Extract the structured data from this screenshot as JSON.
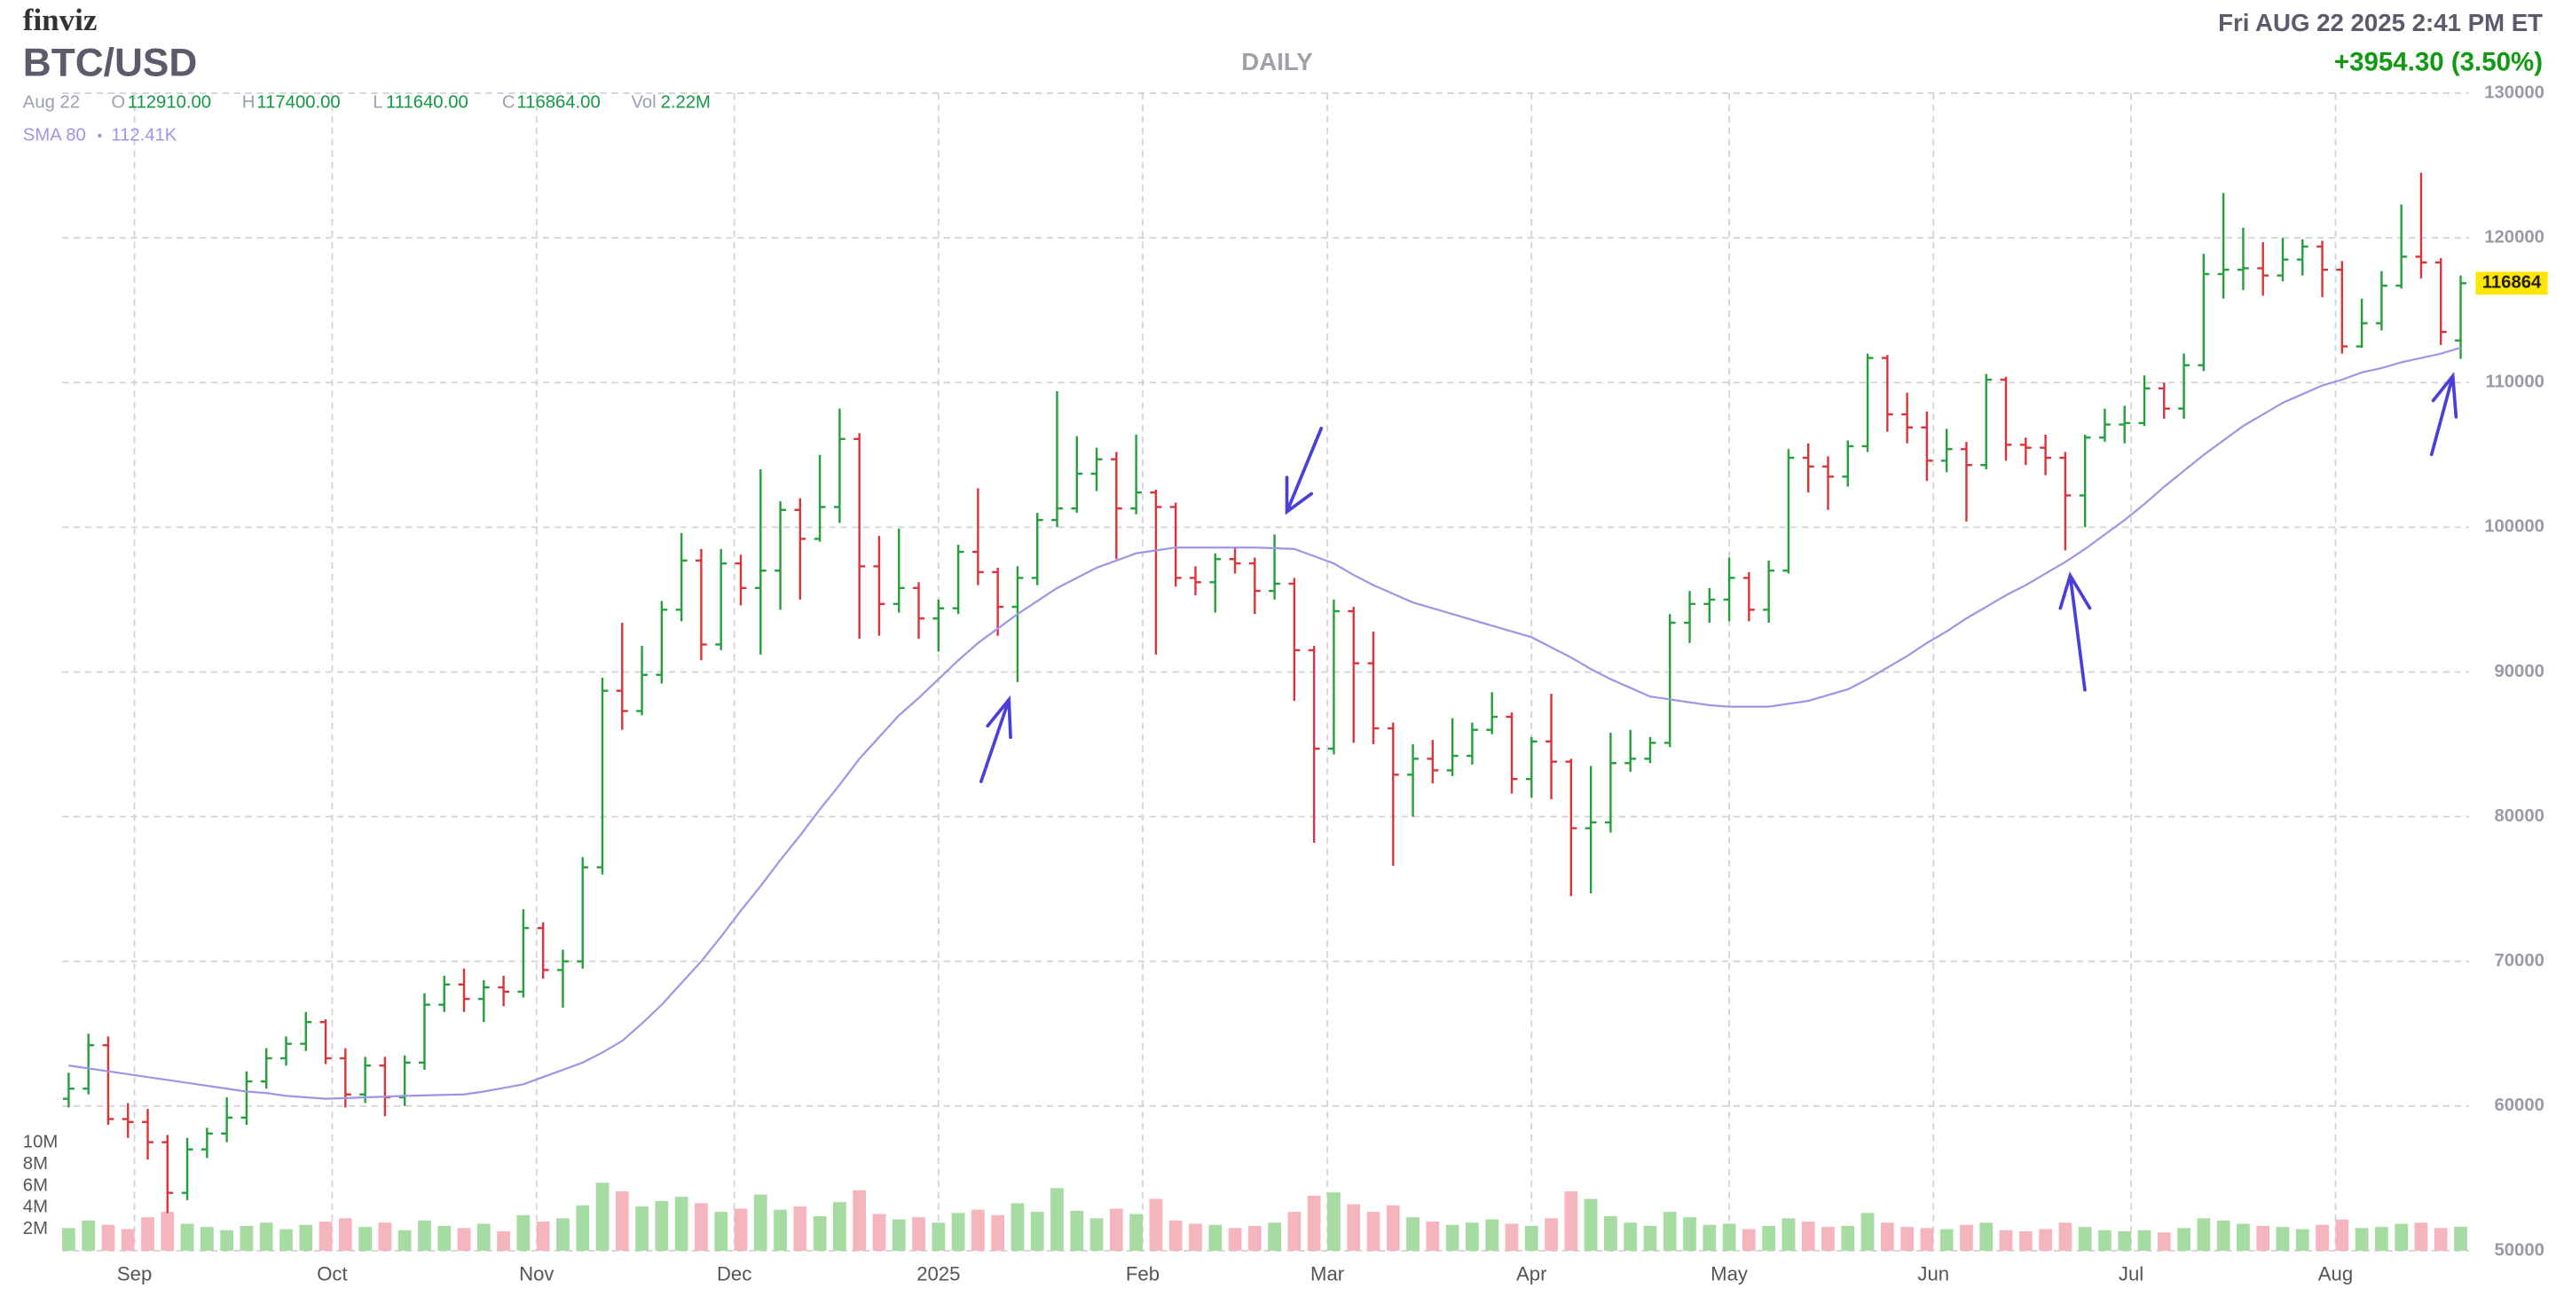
{
  "header": {
    "brand": "finviz",
    "datetime": "Fri AUG 22 2025 2:41 PM ET",
    "change": "+3954.30 (3.50%)"
  },
  "quote": {
    "date": "Aug 22",
    "open_label": "O",
    "open": "112910.00",
    "high_label": "H",
    "high": "117400.00",
    "low_label": "L",
    "low": "111640.00",
    "close_label": "C",
    "close": "116864.00",
    "vol_label": "Vol",
    "vol": "2.22M"
  },
  "chart_data": {
    "type": "ohlc",
    "title": "BTC/USD",
    "timeframe": "DAILY",
    "xlim": [
      -0.33,
      121.43
    ],
    "xticks": [
      {
        "value": 3.33,
        "label": "Sep"
      },
      {
        "value": 13.33,
        "label": "Oct"
      },
      {
        "value": 23.67,
        "label": "Nov"
      },
      {
        "value": 33.67,
        "label": "Dec"
      },
      {
        "value": 44,
        "label": "2025"
      },
      {
        "value": 54.33,
        "label": "Feb"
      },
      {
        "value": 63.67,
        "label": "Mar"
      },
      {
        "value": 74,
        "label": "Apr"
      },
      {
        "value": 84,
        "label": "May"
      },
      {
        "value": 94.33,
        "label": "Jun"
      },
      {
        "value": 104.33,
        "label": "Jul"
      },
      {
        "value": 114.67,
        "label": "Aug"
      }
    ],
    "ylim": [
      50000,
      130000
    ],
    "yticks": [
      50000,
      60000,
      70000,
      80000,
      90000,
      100000,
      110000,
      120000,
      130000
    ],
    "grid": true,
    "up_color": "#22a03c",
    "down_color": "#d9343a",
    "last_price": 116864,
    "series": [
      {
        "name": "BTC/USD",
        "open": [
          60500,
          61200,
          64200,
          59100,
          58900,
          57500,
          54000,
          57000,
          58100,
          59200,
          61700,
          63300,
          64300,
          65800,
          63300,
          60800,
          62800,
          60600,
          63000,
          67000,
          68400,
          67400,
          68200,
          67900,
          72300,
          69400,
          70000,
          76500,
          88700,
          87300,
          89800,
          94300,
          97700,
          91900,
          97500,
          95800,
          97000,
          101200,
          99200,
          101400,
          106100,
          97300,
          94700,
          95800,
          93700,
          94400,
          98300,
          96900,
          94500,
          96500,
          100500,
          101300,
          103700,
          104700,
          101300,
          102400,
          101400,
          96500,
          96200,
          97800,
          97500,
          95600,
          96100,
          91500,
          84700,
          94200,
          90600,
          86100,
          82900,
          84000,
          83200,
          84200,
          86000,
          86900,
          82600,
          85200,
          83800,
          79200,
          79600,
          83700,
          84000,
          85100,
          93400,
          94700,
          95000,
          96500,
          94300,
          97000,
          104800,
          104200,
          103500,
          105600,
          111700,
          107800,
          106900,
          104600,
          105400,
          104300,
          110200,
          105700,
          105500,
          104800,
          102200,
          106200,
          107100,
          107200,
          109600,
          108200,
          111200,
          117500,
          117800,
          117900,
          117400,
          118500,
          119400,
          117800,
          112500,
          114100,
          116700,
          118700,
          118300,
          112910
        ],
        "high": [
          62300,
          65000,
          64800,
          60200,
          59800,
          58000,
          57800,
          58500,
          60600,
          62400,
          64000,
          64800,
          66500,
          66000,
          64000,
          63400,
          63400,
          63500,
          67800,
          69000,
          69500,
          68700,
          69000,
          73600,
          72700,
          70800,
          77200,
          89600,
          93400,
          91800,
          94900,
          99600,
          98500,
          98500,
          98100,
          104000,
          101800,
          102000,
          105000,
          108200,
          106500,
          99400,
          99900,
          96200,
          95000,
          98800,
          102700,
          97200,
          97300,
          101000,
          109400,
          106300,
          105500,
          105200,
          106400,
          102600,
          101700,
          97300,
          98200,
          98600,
          97900,
          99500,
          96500,
          91800,
          95000,
          94500,
          92800,
          86500,
          85000,
          85300,
          86800,
          86500,
          88600,
          87200,
          85500,
          88500,
          84000,
          83500,
          85800,
          86000,
          85500,
          94000,
          95600,
          95800,
          97900,
          96900,
          97700,
          105400,
          105800,
          104900,
          106000,
          112000,
          111900,
          109300,
          108000,
          106800,
          105900,
          110600,
          110400,
          106200,
          106400,
          105200,
          106400,
          108200,
          108400,
          110500,
          110000,
          112000,
          118900,
          123100,
          120700,
          119700,
          120000,
          119900,
          119800,
          118400,
          115800,
          117700,
          122300,
          124500,
          118600,
          117400
        ],
        "low": [
          59900,
          60800,
          58700,
          57800,
          56300,
          52600,
          53500,
          56400,
          57500,
          58700,
          61200,
          62800,
          63800,
          62900,
          59900,
          60200,
          59300,
          60000,
          62500,
          66500,
          66500,
          65800,
          66900,
          67500,
          68800,
          66800,
          69500,
          76000,
          86000,
          87000,
          89200,
          93500,
          90800,
          91500,
          94600,
          91200,
          94300,
          95000,
          99000,
          100300,
          92300,
          92500,
          94100,
          92300,
          91400,
          94000,
          96000,
          92500,
          89300,
          96000,
          100000,
          101000,
          102500,
          97800,
          100900,
          91200,
          95900,
          95300,
          94100,
          96800,
          94000,
          95000,
          88000,
          78200,
          84300,
          85100,
          85000,
          76600,
          80000,
          82300,
          82800,
          83600,
          85700,
          81600,
          81300,
          81200,
          74500,
          74700,
          78900,
          83100,
          83700,
          84800,
          92000,
          93400,
          93500,
          93500,
          93400,
          96800,
          102400,
          101200,
          102800,
          105200,
          106600,
          105800,
          103200,
          103800,
          100400,
          104000,
          104600,
          104300,
          103600,
          98400,
          100000,
          105900,
          105800,
          107000,
          107500,
          107500,
          110800,
          115800,
          116400,
          116000,
          117000,
          117400,
          115900,
          112000,
          112400,
          113600,
          116500,
          117200,
          112600,
          111640
        ],
        "close": [
          61200,
          64200,
          59100,
          58900,
          57500,
          54000,
          57000,
          58100,
          59200,
          61700,
          63300,
          64300,
          65800,
          63300,
          60800,
          62800,
          60600,
          63000,
          67000,
          68400,
          67400,
          68200,
          67900,
          72300,
          69400,
          70000,
          76500,
          88700,
          87300,
          89800,
          94300,
          97700,
          91900,
          97500,
          95800,
          97000,
          101200,
          99200,
          101400,
          106100,
          97300,
          94700,
          95800,
          93700,
          94400,
          98300,
          96900,
          94500,
          96500,
          100500,
          101300,
          103700,
          104700,
          101300,
          102400,
          101400,
          96500,
          96200,
          97800,
          97500,
          95600,
          96100,
          91500,
          84700,
          94200,
          90600,
          86100,
          82900,
          84000,
          83200,
          84200,
          86000,
          86900,
          82600,
          85200,
          83800,
          79200,
          79600,
          83700,
          84000,
          85100,
          93400,
          94700,
          95000,
          96500,
          94300,
          97000,
          104800,
          104200,
          103500,
          105600,
          111700,
          107800,
          106900,
          104600,
          105400,
          104300,
          110200,
          105700,
          105500,
          104800,
          102200,
          106200,
          107100,
          107200,
          109600,
          108200,
          111200,
          117500,
          117800,
          117900,
          117400,
          118500,
          119400,
          117800,
          112500,
          114100,
          116700,
          118700,
          118300,
          113500,
          116864
        ]
      }
    ],
    "sma": {
      "name": "SMA 80",
      "value_label": "112.41K",
      "color": "#9d96e6",
      "values": [
        62800,
        62600,
        62400,
        62200,
        62000,
        61800,
        61600,
        61400,
        61200,
        61000,
        60900,
        60700,
        60600,
        60500,
        60550,
        60600,
        60650,
        60700,
        60730,
        60770,
        60800,
        61000,
        61250,
        61500,
        62000,
        62500,
        63000,
        63700,
        64500,
        65700,
        67000,
        68500,
        70000,
        71700,
        73500,
        75200,
        77000,
        78700,
        80500,
        82200,
        84000,
        85500,
        87000,
        88200,
        89500,
        90800,
        92000,
        93000,
        94000,
        94900,
        95800,
        96500,
        97200,
        97700,
        98200,
        98400,
        98600,
        98600,
        98600,
        98600,
        98600,
        98550,
        98500,
        98000,
        97500,
        96700,
        96000,
        95400,
        94800,
        94400,
        94000,
        93600,
        93200,
        92800,
        92400,
        91700,
        91000,
        90200,
        89500,
        88900,
        88300,
        88100,
        87900,
        87700,
        87600,
        87600,
        87600,
        87800,
        88000,
        88400,
        88800,
        89500,
        90300,
        91100,
        92000,
        92800,
        93700,
        94500,
        95300,
        96000,
        96800,
        97600,
        98500,
        99500,
        100500,
        101600,
        102800,
        103900,
        105000,
        106000,
        107000,
        107800,
        108600,
        109200,
        109800,
        110200,
        110700,
        111000,
        111400,
        111700,
        112000,
        112410
      ]
    },
    "volume": {
      "up_color": "#a6dca2",
      "down_color": "#f5b5bc",
      "ylim": [
        0,
        10
      ],
      "yticks": [
        {
          "value": 10,
          "label": "10M"
        },
        {
          "value": 8,
          "label": "8M"
        },
        {
          "value": 6,
          "label": "6M"
        },
        {
          "value": 4,
          "label": "4M"
        },
        {
          "value": 2,
          "label": "2M"
        }
      ],
      "values": [
        2.1,
        2.8,
        2.4,
        2.0,
        3.1,
        3.6,
        2.5,
        2.2,
        1.9,
        2.3,
        2.6,
        2.0,
        2.4,
        2.7,
        3.0,
        2.2,
        2.6,
        1.9,
        2.8,
        2.3,
        2.1,
        2.5,
        1.8,
        3.3,
        2.7,
        3.0,
        4.2,
        6.3,
        5.5,
        4.1,
        4.6,
        5.0,
        4.4,
        3.6,
        3.9,
        5.2,
        3.8,
        4.1,
        3.2,
        4.5,
        5.6,
        3.4,
        2.9,
        3.1,
        2.6,
        3.5,
        3.8,
        3.3,
        4.4,
        3.6,
        5.8,
        3.7,
        3.0,
        3.9,
        3.4,
        4.8,
        2.8,
        2.5,
        2.4,
        2.1,
        2.3,
        2.6,
        3.6,
        5.1,
        5.4,
        4.3,
        3.6,
        4.2,
        3.1,
        2.7,
        2.4,
        2.6,
        2.9,
        2.5,
        2.3,
        3.0,
        5.5,
        4.8,
        3.2,
        2.6,
        2.3,
        3.6,
        3.1,
        2.4,
        2.5,
        2.0,
        2.3,
        3.0,
        2.7,
        2.2,
        2.3,
        3.5,
        2.6,
        2.2,
        2.1,
        2.0,
        2.4,
        2.6,
        1.9,
        1.8,
        2.0,
        2.6,
        2.2,
        1.9,
        1.8,
        1.9,
        1.7,
        2.1,
        3.0,
        2.8,
        2.5,
        2.3,
        2.2,
        2.0,
        2.4,
        2.9,
        2.1,
        2.2,
        2.5,
        2.6,
        2.1,
        2.22
      ]
    }
  }
}
